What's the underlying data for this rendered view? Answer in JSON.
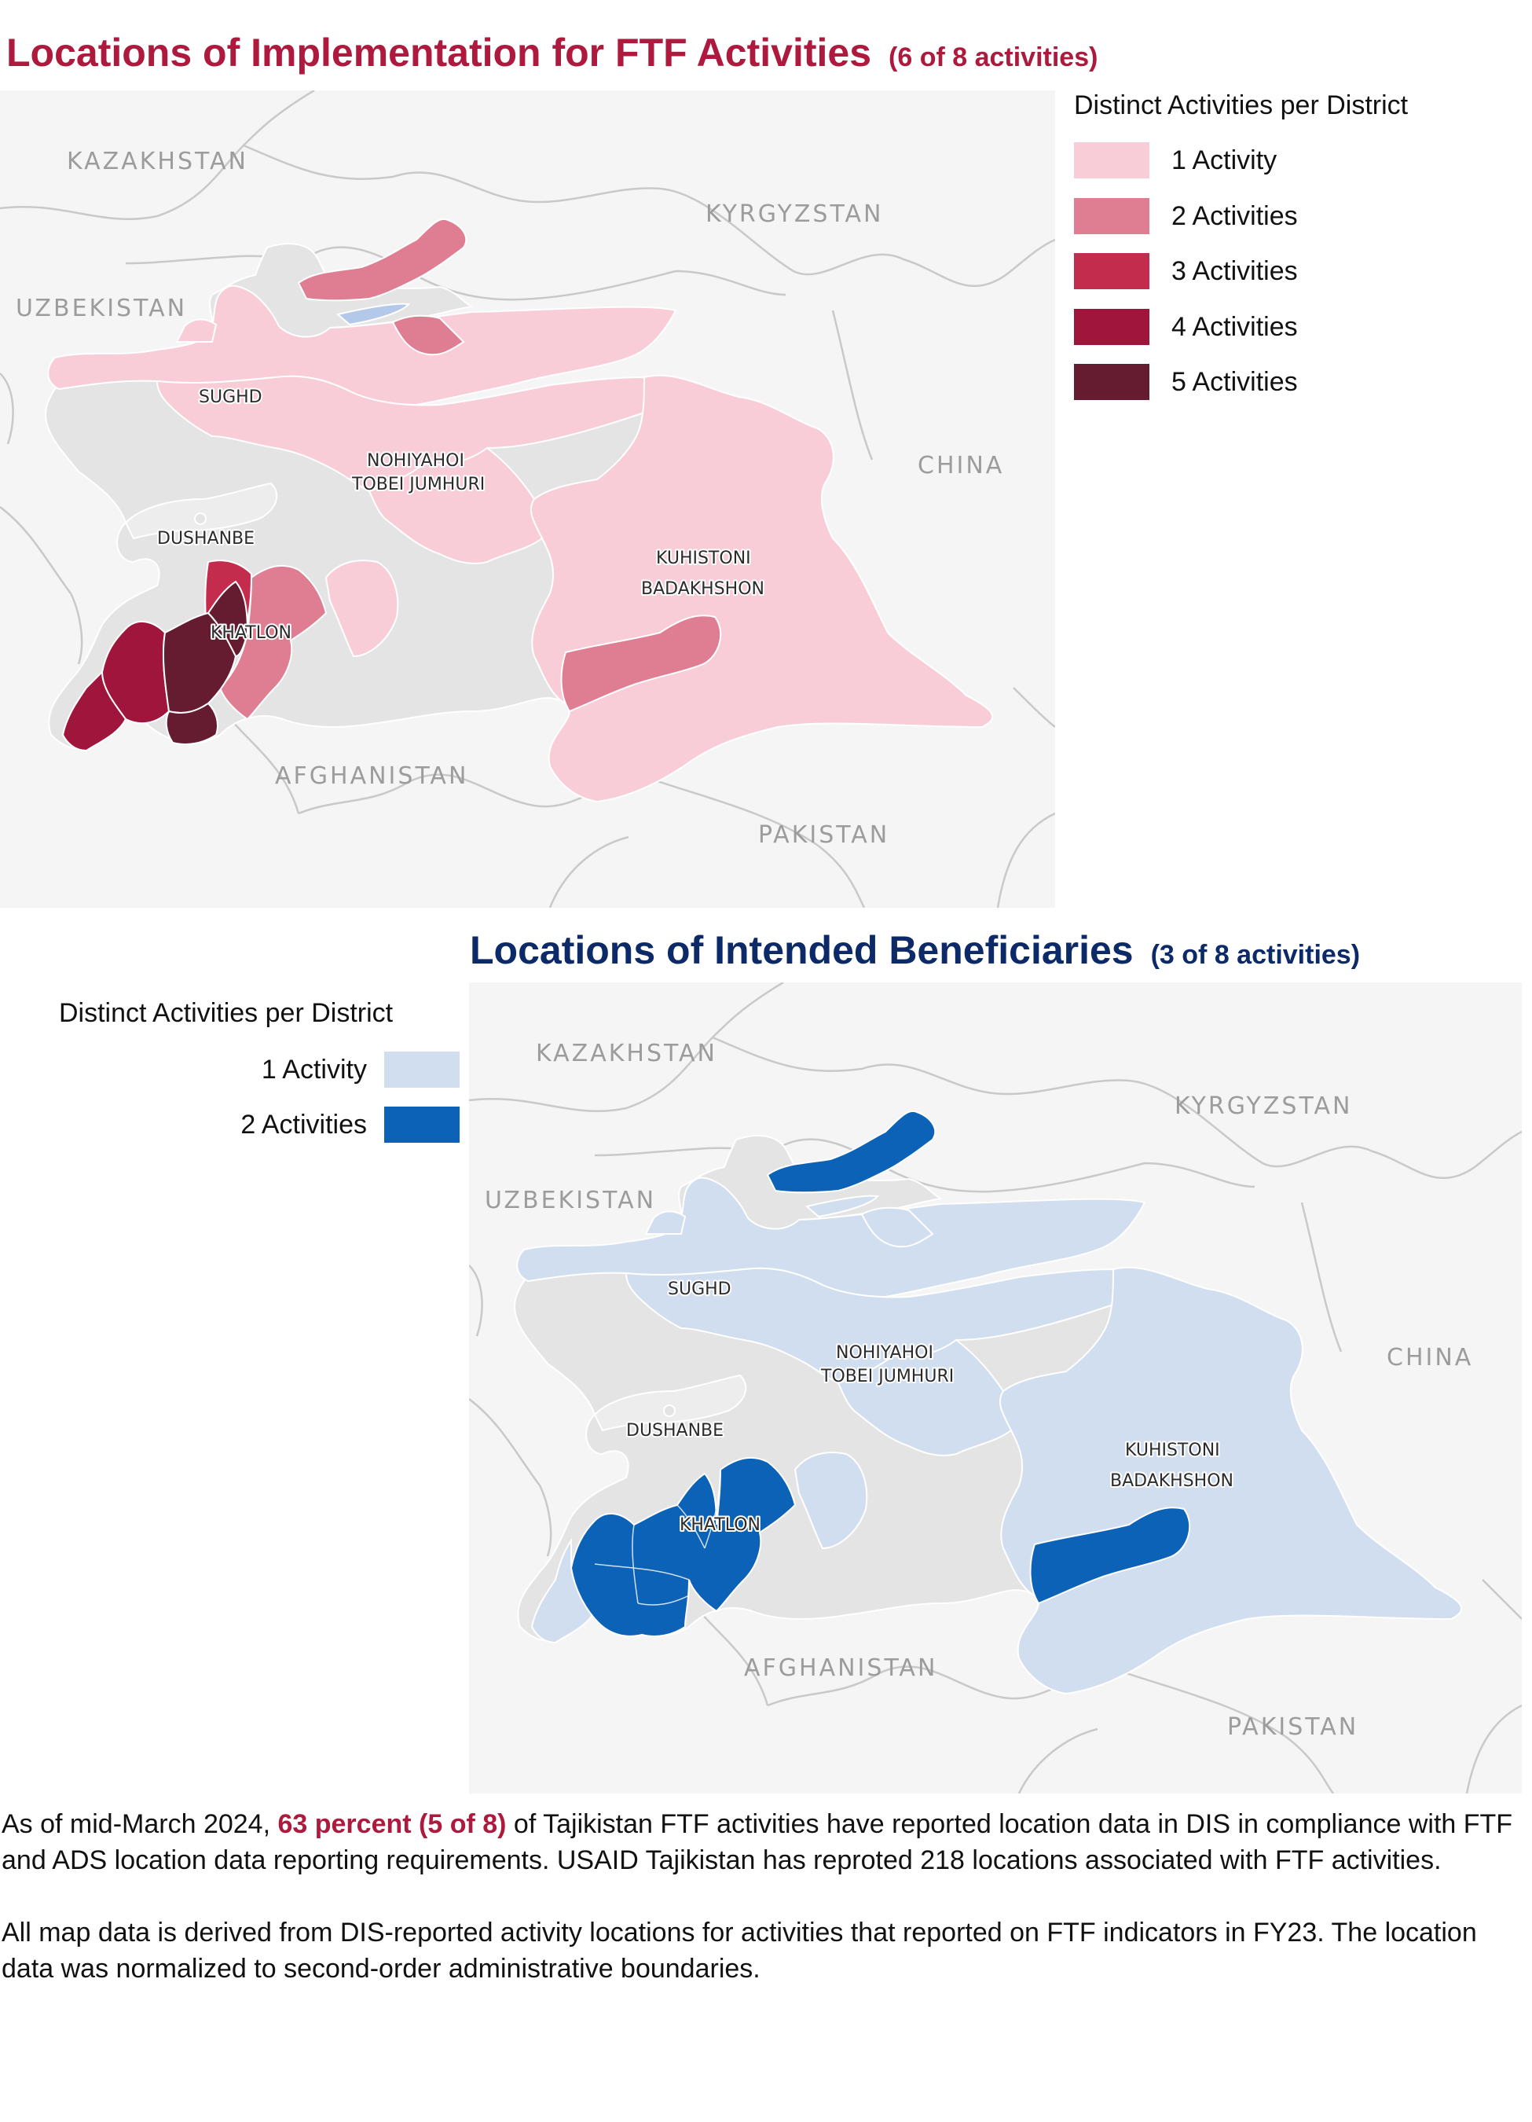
{
  "top_section": {
    "title": "Locations of Implementation for FTF Activities",
    "subtitle": "(6 of 8 activities)",
    "legend": {
      "title": "Distinct Activities per District",
      "items": [
        {
          "label": "1 Activity",
          "color": "#f9cdd8"
        },
        {
          "label": "2 Activities",
          "color": "#df7d92"
        },
        {
          "label": "3 Activities",
          "color": "#c42c4d"
        },
        {
          "label": "4 Activities",
          "color": "#a0153b"
        },
        {
          "label": "5 Activities",
          "color": "#651c31"
        }
      ]
    },
    "map": {
      "countries": [
        "KAZAKHSTAN",
        "KYRGYZSTAN",
        "UZBEKISTAN",
        "CHINA",
        "AFGHANISTAN",
        "PAKISTAN"
      ],
      "regions": [
        "SUGHD",
        "NOHIYAHOI",
        "TOBEI JUMHURI",
        "DUSHANBE",
        "KHATLON",
        "KUHISTONI",
        "BADAKHSHON"
      ]
    }
  },
  "bottom_section": {
    "title": "Locations of Intended Beneficiaries",
    "subtitle": "(3 of 8 activities)",
    "legend": {
      "title": "Distinct Activities per District",
      "items": [
        {
          "label": "1 Activity",
          "color": "#d0deef"
        },
        {
          "label": "2 Activities",
          "color": "#0b62b7"
        }
      ]
    },
    "map": {
      "countries": [
        "KAZAKHSTAN",
        "KYRGYZSTAN",
        "UZBEKISTAN",
        "CHINA",
        "AFGHANISTAN",
        "PAKISTAN"
      ],
      "regions": [
        "SUGHD",
        "NOHIYAHOI",
        "TOBEI JUMHURI",
        "DUSHANBE",
        "KHATLON",
        "KUHISTONI",
        "BADAKHSHON"
      ]
    }
  },
  "footer": {
    "p1_before": "As of mid-March 2024, ",
    "p1_highlight": "63 percent (5 of 8)",
    "p1_after": " of Tajikistan FTF activities have reported location data in DIS in compliance with FTF and ADS location data reporting requirements. USAID Tajikistan has reproted 218 locations associated with FTF activities.",
    "p2": "All map data is derived from DIS-reported activity locations for activities that reported on FTF indicators in FY23. The location data was normalized to second-order administrative boundaries."
  },
  "colors": {
    "title_red": "#ad1a3d",
    "title_navy": "#0d2a68",
    "neighbor_fill": "#f5f5f5",
    "unreported_fill": "#e5e5e5",
    "border": "#c8c8c8"
  }
}
